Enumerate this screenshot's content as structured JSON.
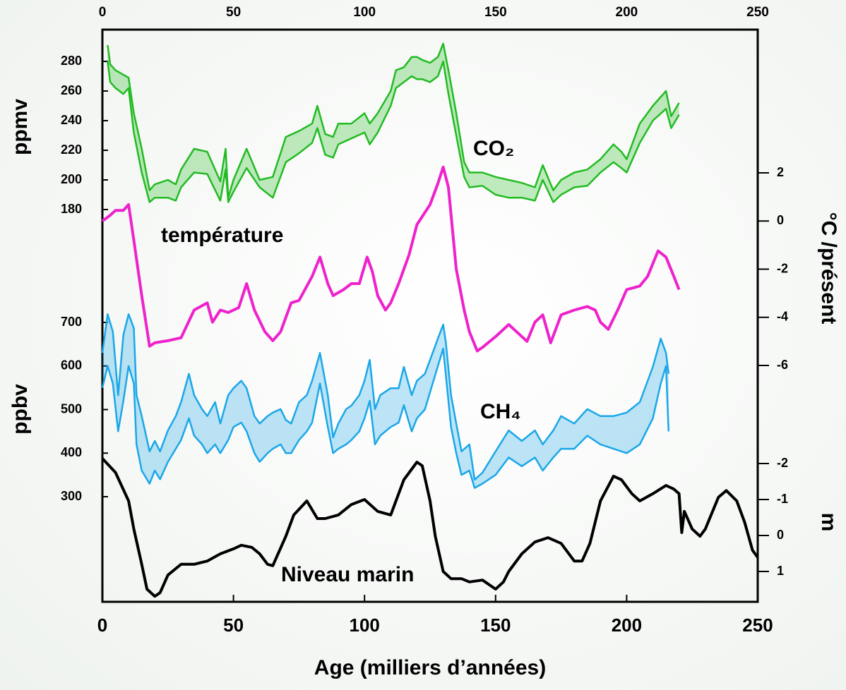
{
  "chart_data": [
    {
      "type": "band",
      "label": "CO₂",
      "ylabel": "ppmv",
      "side": "left",
      "color": "#22bb22",
      "xlim": [
        0,
        250
      ],
      "xticks": [
        0,
        50,
        100,
        150,
        200,
        250
      ],
      "xlabel": "Age (milliers d’années)",
      "ylim": [
        180,
        280
      ],
      "yticks": [
        180,
        200,
        220,
        240,
        260,
        280
      ],
      "x": [
        2,
        3,
        5,
        8,
        10,
        12,
        15,
        18,
        20,
        25,
        28,
        30,
        35,
        40,
        45,
        47,
        48,
        50,
        55,
        60,
        65,
        70,
        75,
        80,
        82,
        85,
        88,
        90,
        95,
        100,
        102,
        105,
        110,
        112,
        115,
        118,
        120,
        122,
        125,
        128,
        130,
        132,
        135,
        138,
        140,
        145,
        150,
        155,
        160,
        165,
        168,
        172,
        175,
        180,
        185,
        190,
        195,
        198,
        200,
        205,
        210,
        215,
        217,
        220
      ],
      "series": [
        {
          "values": [
            291,
            278,
            274,
            271,
            269,
            245,
            221,
            193,
            197,
            200,
            197,
            207,
            221,
            219,
            199,
            221,
            188,
            200,
            221,
            200,
            202,
            229,
            233,
            238,
            250,
            231,
            229,
            238,
            238,
            245,
            238,
            245,
            260,
            274,
            276,
            283,
            283,
            281,
            279,
            283,
            292,
            274,
            245,
            212,
            205,
            205,
            202,
            200,
            198,
            195,
            210,
            193,
            200,
            205,
            207,
            214,
            224,
            219,
            214,
            238,
            250,
            260,
            243,
            252
          ]
        },
        {
          "values": [
            280,
            266,
            262,
            258,
            262,
            232,
            205,
            185,
            188,
            188,
            186,
            195,
            205,
            204,
            186,
            207,
            185,
            192,
            208,
            195,
            188,
            212,
            218,
            225,
            235,
            217,
            215,
            224,
            228,
            232,
            224,
            232,
            250,
            262,
            266,
            270,
            268,
            268,
            266,
            270,
            280,
            258,
            230,
            202,
            195,
            196,
            190,
            188,
            188,
            186,
            200,
            185,
            190,
            195,
            196,
            205,
            212,
            208,
            205,
            225,
            240,
            248,
            235,
            244
          ]
        }
      ]
    },
    {
      "type": "line",
      "label": "température",
      "ylabel": "°C /présent",
      "side": "right",
      "color": "#ee22cc",
      "ylim": [
        -6,
        2
      ],
      "yticks": [
        -6,
        -4,
        -2,
        0,
        2
      ],
      "x": [
        0,
        3,
        5,
        8,
        10,
        12,
        15,
        18,
        20,
        25,
        30,
        35,
        40,
        42,
        45,
        48,
        52,
        55,
        58,
        62,
        65,
        68,
        72,
        75,
        80,
        83,
        86,
        88,
        92,
        95,
        98,
        101,
        103,
        105,
        108,
        110,
        113,
        117,
        120,
        125,
        128,
        130,
        132,
        135,
        138,
        140,
        143,
        145,
        150,
        155,
        158,
        162,
        165,
        168,
        171,
        175,
        180,
        185,
        188,
        190,
        193,
        197,
        200,
        205,
        208,
        212,
        215,
        218,
        220
      ],
      "values": [
        0,
        0.24,
        0.44,
        0.44,
        0.68,
        -0.8,
        -3.1,
        -5.2,
        -5.06,
        -4.97,
        -4.85,
        -3.7,
        -3.4,
        -4.2,
        -3.7,
        -3.8,
        -3.6,
        -2.6,
        -3.7,
        -4.6,
        -4.97,
        -4.6,
        -3.4,
        -3.3,
        -2.3,
        -1.5,
        -2.6,
        -3.1,
        -2.85,
        -2.6,
        -2.6,
        -1.5,
        -2.1,
        -3.1,
        -3.7,
        -3.4,
        -2.6,
        -1.4,
        -0.15,
        0.68,
        1.56,
        2.24,
        1.4,
        -2.0,
        -3.7,
        -4.6,
        -5.4,
        -5.25,
        -4.8,
        -4.3,
        -4.6,
        -5.0,
        -4.2,
        -3.9,
        -5.06,
        -3.9,
        -3.7,
        -3.55,
        -3.7,
        -4.2,
        -4.5,
        -3.6,
        -2.85,
        -2.7,
        -2.3,
        -1.24,
        -1.5,
        -2.3,
        -2.85
      ]
    },
    {
      "type": "band",
      "label": "CH₄",
      "ylabel": "ppbv",
      "side": "left",
      "color": "#1aa7e8",
      "ylim": [
        300,
        700
      ],
      "yticks": [
        300,
        400,
        500,
        600,
        700
      ],
      "x": [
        0,
        2,
        4,
        6,
        8,
        10,
        12,
        13,
        15,
        18,
        20,
        22,
        25,
        28,
        30,
        33,
        35,
        38,
        40,
        43,
        45,
        48,
        50,
        53,
        55,
        58,
        60,
        63,
        65,
        68,
        70,
        72,
        75,
        78,
        80,
        83,
        86,
        88,
        90,
        93,
        95,
        98,
        100,
        102,
        104,
        106,
        110,
        113,
        115,
        118,
        120,
        123,
        126,
        128,
        130,
        131,
        133,
        135,
        137,
        140,
        142,
        145,
        150,
        155,
        160,
        165,
        168,
        172,
        175,
        180,
        185,
        190,
        195,
        200,
        205,
        210,
        213,
        215,
        216
      ],
      "series": [
        {
          "values": [
            630,
            719,
            679,
            533,
            671,
            719,
            687,
            533,
            485,
            404,
            428,
            404,
            452,
            485,
            517,
            582,
            533,
            501,
            485,
            517,
            468,
            533,
            549,
            566,
            549,
            485,
            468,
            485,
            493,
            501,
            476,
            468,
            517,
            533,
            566,
            630,
            533,
            436,
            468,
            501,
            509,
            533,
            566,
            614,
            501,
            533,
            549,
            549,
            598,
            533,
            566,
            582,
            630,
            663,
            695,
            655,
            533,
            468,
            404,
            420,
            339,
            355,
            404,
            452,
            428,
            452,
            420,
            452,
            485,
            468,
            501,
            485,
            485,
            493,
            517,
            598,
            663,
            630,
            582
          ]
        },
        {
          "values": [
            550,
            600,
            560,
            450,
            520,
            600,
            560,
            420,
            360,
            330,
            360,
            340,
            380,
            410,
            430,
            480,
            440,
            420,
            400,
            420,
            400,
            430,
            460,
            470,
            450,
            400,
            380,
            400,
            410,
            420,
            400,
            400,
            430,
            450,
            470,
            560,
            460,
            400,
            410,
            420,
            430,
            450,
            480,
            520,
            420,
            440,
            460,
            470,
            510,
            450,
            480,
            500,
            560,
            600,
            640,
            580,
            460,
            400,
            350,
            360,
            320,
            330,
            350,
            390,
            370,
            390,
            360,
            390,
            410,
            410,
            440,
            420,
            410,
            400,
            420,
            480,
            560,
            600,
            450
          ]
        }
      ]
    },
    {
      "type": "line",
      "label": "Niveau marin",
      "ylabel": "m",
      "side": "right",
      "color": "#000000",
      "inverted": true,
      "ylim": [
        -2,
        1
      ],
      "yticks": [
        -2,
        -1,
        0,
        1
      ],
      "x": [
        0,
        5,
        10,
        12,
        15,
        17,
        20,
        22,
        25,
        30,
        35,
        40,
        45,
        50,
        53,
        57,
        60,
        63,
        65,
        70,
        73,
        78,
        82,
        85,
        90,
        95,
        100,
        105,
        110,
        113,
        115,
        120,
        122,
        125,
        127,
        130,
        133,
        137,
        140,
        145,
        150,
        153,
        155,
        160,
        165,
        170,
        175,
        180,
        183,
        186,
        190,
        195,
        198,
        202,
        205,
        210,
        215,
        218,
        220,
        221,
        222,
        225,
        228,
        230,
        235,
        238,
        242,
        245,
        248,
        250
      ],
      "values": [
        -2.14,
        -1.75,
        -0.96,
        -0.18,
        0.8,
        1.49,
        1.69,
        1.59,
        1.1,
        0.8,
        0.8,
        0.71,
        0.51,
        0.37,
        0.27,
        0.33,
        0.51,
        0.8,
        0.84,
        0.02,
        -0.57,
        -0.96,
        -0.47,
        -0.47,
        -0.57,
        -0.86,
        -1.0,
        -0.67,
        -0.57,
        -1.16,
        -1.55,
        -2.04,
        -1.94,
        -0.96,
        0.02,
        1.0,
        1.2,
        1.2,
        1.29,
        1.24,
        1.49,
        1.29,
        1.0,
        0.51,
        0.18,
        0.06,
        0.22,
        0.71,
        0.71,
        0.22,
        -0.96,
        -1.65,
        -1.55,
        -1.16,
        -0.96,
        -1.16,
        -1.39,
        -1.29,
        -1.16,
        -0.08,
        -0.67,
        -0.18,
        0.02,
        -0.18,
        -1.06,
        -1.25,
        -0.96,
        -0.37,
        0.41,
        0.61
      ]
    }
  ]
}
